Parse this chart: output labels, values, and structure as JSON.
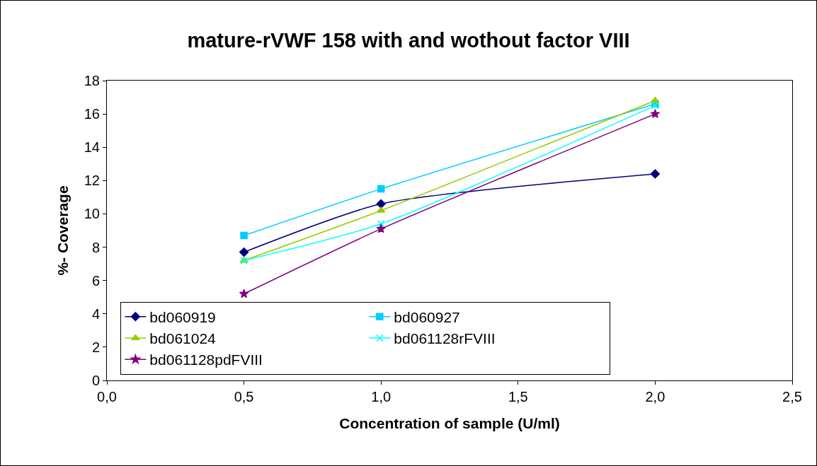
{
  "chart_data": {
    "type": "line",
    "title": "mature-rVWF 158 with and wothout factor VIII",
    "xlabel": "Concentration of sample (U/ml)",
    "ylabel": "%- Coverage",
    "x": [
      0.5,
      1.0,
      2.0
    ],
    "series": [
      {
        "name": "bd060919",
        "color": "#000080",
        "marker": "diamond",
        "values": [
          7.7,
          10.6,
          12.4
        ]
      },
      {
        "name": "bd060927",
        "color": "#00ccff",
        "marker": "square",
        "values": [
          8.7,
          11.5,
          16.6
        ]
      },
      {
        "name": "bd061024",
        "color": "#99cc00",
        "marker": "triangle",
        "values": [
          7.2,
          10.2,
          16.8
        ]
      },
      {
        "name": "bd061128rFVIII",
        "color": "#00ffff",
        "marker": "cross",
        "values": [
          7.2,
          9.4,
          16.5
        ]
      },
      {
        "name": "bd061128pdFVIII",
        "color": "#800080",
        "marker": "star",
        "values": [
          5.2,
          9.1,
          16.0
        ]
      }
    ],
    "xlim": [
      0,
      2.5
    ],
    "xticks": [
      {
        "value": 0,
        "label": "0,0"
      },
      {
        "value": 0.5,
        "label": "0,5"
      },
      {
        "value": 1,
        "label": "1,0"
      },
      {
        "value": 1.5,
        "label": "1,5"
      },
      {
        "value": 2,
        "label": "2,0"
      },
      {
        "value": 2.5,
        "label": "2,5"
      }
    ],
    "ylim": [
      0,
      18
    ],
    "yticks": [
      0,
      2,
      4,
      6,
      8,
      10,
      12,
      14,
      16,
      18
    ],
    "grid": false,
    "legend": "bottom",
    "line_style": "solid"
  }
}
